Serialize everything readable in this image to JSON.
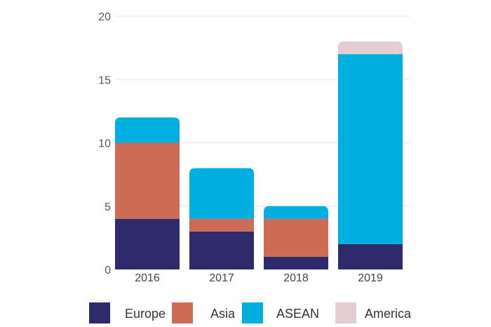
{
  "chart_data": {
    "type": "bar",
    "stacked": true,
    "title": "",
    "xlabel": "",
    "ylabel": "",
    "ylim": [
      0,
      20
    ],
    "yticks": [
      0,
      5,
      10,
      15,
      20
    ],
    "grid": true,
    "legend_position": "bottom",
    "categories": [
      "2016",
      "2017",
      "2018",
      "2019"
    ],
    "series": [
      {
        "name": "Europe",
        "color": "#2f2a6b",
        "values": [
          4,
          3,
          1,
          2
        ]
      },
      {
        "name": "Asia",
        "color": "#cd6b55",
        "values": [
          6,
          1,
          3,
          0
        ]
      },
      {
        "name": "ASEAN",
        "color": "#00afe0",
        "values": [
          2,
          4,
          1,
          15
        ]
      },
      {
        "name": "America",
        "color": "#e4cdd1",
        "values": [
          0,
          0,
          0,
          1
        ]
      }
    ]
  }
}
